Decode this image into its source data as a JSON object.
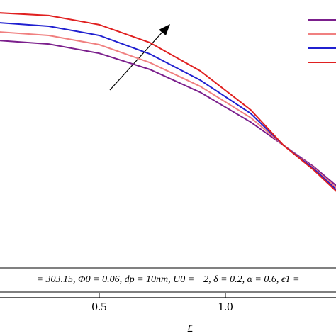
{
  "chart_data": {
    "type": "line",
    "x_label": "r",
    "annotation": "= 303.15, Φ0 = 0.06, dp = 10nm, U0 = −2, δ = 0.2, α = 0.6, ϵ1 =",
    "x": [
      0.1,
      0.3,
      0.5,
      0.7,
      0.9,
      1.1,
      1.23,
      1.35,
      1.44
    ],
    "series": [
      {
        "color": "#7b1f8c",
        "values": [
          0.864,
          0.852,
          0.821,
          0.767,
          0.69,
          0.59,
          0.512,
          0.44,
          0.376
        ]
      },
      {
        "color": "#f08080",
        "values": [
          0.893,
          0.881,
          0.85,
          0.79,
          0.71,
          0.605,
          0.512,
          0.436,
          0.369
        ]
      },
      {
        "color": "#2020d0",
        "values": [
          0.924,
          0.912,
          0.881,
          0.819,
          0.731,
          0.619,
          0.512,
          0.433,
          0.362
        ]
      },
      {
        "color": "#e02020",
        "values": [
          0.957,
          0.948,
          0.917,
          0.857,
          0.762,
          0.631,
          0.512,
          0.429,
          0.357
        ]
      }
    ],
    "xlim": [
      0,
      1.5
    ],
    "ylim": [
      0,
      1
    ],
    "xticks": [
      0.5,
      {
        "value": 1,
        "label": "1.0"
      }
    ]
  }
}
